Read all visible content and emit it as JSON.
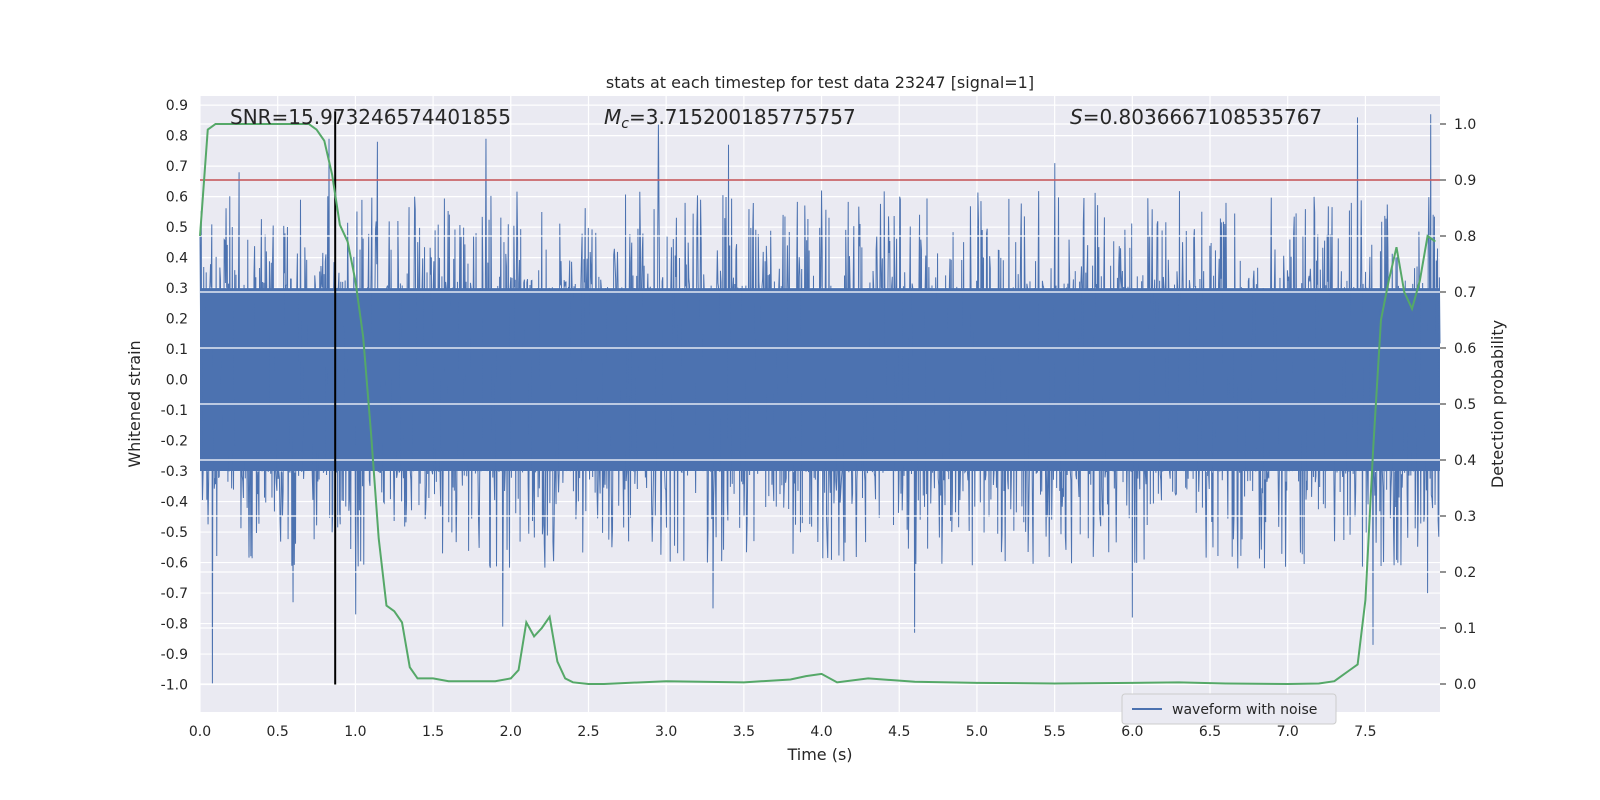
{
  "chart_data": {
    "type": "line",
    "title": "stats at each timestep for test data 23247 [signal=1]",
    "xlabel": "Time (s)",
    "ylabel": "Whitened strain",
    "y2label": "Detection probability",
    "xlim": [
      0.0,
      7.98
    ],
    "ylim": [
      -1.09,
      0.93
    ],
    "y2lim": [
      -0.05,
      1.05
    ],
    "xticks": [
      "0.0",
      "0.5",
      "1.0",
      "1.5",
      "2.0",
      "2.5",
      "3.0",
      "3.5",
      "4.0",
      "4.5",
      "5.0",
      "5.5",
      "6.0",
      "6.5",
      "7.0",
      "7.5"
    ],
    "yticks": [
      "0.9",
      "0.8",
      "0.7",
      "0.6",
      "0.5",
      "0.4",
      "0.3",
      "0.2",
      "0.1",
      "0.0",
      "-0.1",
      "-0.2",
      "-0.3",
      "-0.4",
      "-0.5",
      "-0.6",
      "-0.7",
      "-0.8",
      "-0.9",
      "-1.0"
    ],
    "y2ticks": [
      "1.0",
      "0.9",
      "0.8",
      "0.7",
      "0.6",
      "0.5",
      "0.4",
      "0.3",
      "0.2",
      "0.1",
      "0.0"
    ],
    "annotations": {
      "snr": "SNR=15.973246574401855",
      "mc": "=3.715200185775757",
      "mc_symbol": "M",
      "mc_sub": "c",
      "s": "=0.8036667108535767",
      "s_symbol": "S"
    },
    "threshold_line": {
      "y2_value": 0.9,
      "color": "#c44e52"
    },
    "marker_line": {
      "x_value": 0.87,
      "y_from": -1.0,
      "y_to": 0.88,
      "color": "#000000"
    },
    "legend": {
      "label": "waveform with noise",
      "location": "lower-right"
    },
    "series": [
      {
        "name": "waveform with noise",
        "axis": "left",
        "color": "#4c72b0",
        "x_start": 0.0,
        "x_end": 7.98,
        "samples": 2000,
        "band_upper": 0.3,
        "band_lower": -0.3,
        "spikes_up": [
          {
            "x": 0.08,
            "y": 0.6
          },
          {
            "x": 0.25,
            "y": 0.68
          },
          {
            "x": 0.83,
            "y": 0.79
          },
          {
            "x": 1.14,
            "y": 0.78
          },
          {
            "x": 1.84,
            "y": 0.79
          },
          {
            "x": 2.95,
            "y": 0.84
          },
          {
            "x": 3.4,
            "y": 0.77
          },
          {
            "x": 4.0,
            "y": 0.62
          },
          {
            "x": 5.5,
            "y": 0.71
          },
          {
            "x": 7.45,
            "y": 0.86
          },
          {
            "x": 7.92,
            "y": 0.87
          }
        ],
        "spikes_down": [
          {
            "x": 0.08,
            "y": -1.0
          },
          {
            "x": 0.6,
            "y": -0.73
          },
          {
            "x": 1.0,
            "y": -0.77
          },
          {
            "x": 1.95,
            "y": -0.81
          },
          {
            "x": 3.3,
            "y": -0.75
          },
          {
            "x": 4.6,
            "y": -0.83
          },
          {
            "x": 6.0,
            "y": -0.78
          },
          {
            "x": 7.55,
            "y": -0.87
          },
          {
            "x": 7.9,
            "y": -0.7
          }
        ]
      },
      {
        "name": "detection probability",
        "axis": "right",
        "color": "#55a868",
        "x": [
          0.0,
          0.05,
          0.1,
          0.3,
          0.5,
          0.6,
          0.7,
          0.75,
          0.8,
          0.85,
          0.9,
          0.95,
          1.0,
          1.05,
          1.1,
          1.15,
          1.2,
          1.25,
          1.3,
          1.35,
          1.4,
          1.45,
          1.5,
          1.6,
          1.75,
          1.9,
          2.0,
          2.05,
          2.1,
          2.15,
          2.2,
          2.25,
          2.3,
          2.35,
          2.4,
          2.5,
          2.6,
          3.0,
          3.5,
          3.8,
          3.9,
          4.0,
          4.1,
          4.3,
          4.6,
          5.0,
          5.5,
          6.0,
          6.3,
          6.6,
          7.0,
          7.2,
          7.3,
          7.35,
          7.4,
          7.45,
          7.5,
          7.55,
          7.6,
          7.65,
          7.7,
          7.75,
          7.8,
          7.85,
          7.9,
          7.95
        ],
        "values": [
          0.8,
          0.99,
          1.0,
          1.0,
          1.0,
          1.0,
          1.0,
          0.99,
          0.97,
          0.91,
          0.82,
          0.79,
          0.72,
          0.62,
          0.45,
          0.26,
          0.14,
          0.13,
          0.11,
          0.03,
          0.01,
          0.01,
          0.01,
          0.005,
          0.005,
          0.005,
          0.01,
          0.025,
          0.11,
          0.085,
          0.1,
          0.12,
          0.04,
          0.01,
          0.003,
          0.0,
          0.0,
          0.005,
          0.003,
          0.008,
          0.014,
          0.018,
          0.003,
          0.01,
          0.004,
          0.002,
          0.001,
          0.002,
          0.003,
          0.001,
          0.0,
          0.001,
          0.005,
          0.015,
          0.025,
          0.035,
          0.15,
          0.42,
          0.65,
          0.72,
          0.78,
          0.7,
          0.67,
          0.72,
          0.8,
          0.79
        ]
      }
    ]
  }
}
